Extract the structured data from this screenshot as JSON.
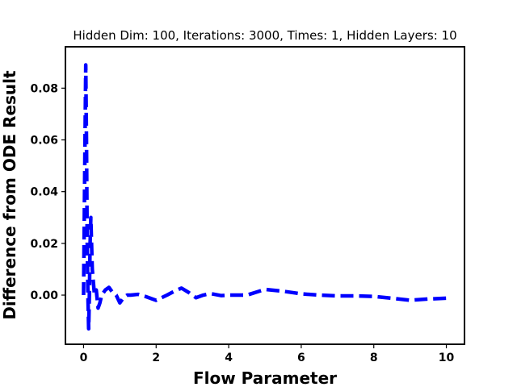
{
  "chart_data": {
    "type": "line",
    "title": "Hidden Dim: 100, Iterations: 3000, Times: 1, Hidden Layers: 10",
    "xlabel": "Flow Parameter",
    "ylabel": "Difference from ODE Result",
    "xlim": [
      -0.5,
      10.5
    ],
    "ylim": [
      -0.019,
      0.096
    ],
    "xticks": [
      0,
      2,
      4,
      6,
      8,
      10
    ],
    "xtick_labels": [
      "0",
      "2",
      "4",
      "6",
      "8",
      "10"
    ],
    "yticks": [
      0.0,
      0.02,
      0.04,
      0.06,
      0.08
    ],
    "ytick_labels": [
      "0.00",
      "0.02",
      "0.04",
      "0.06",
      "0.08"
    ],
    "grid": false,
    "series": [
      {
        "color": "#0000ff",
        "line_style": "dashed",
        "x": [
          0.0,
          0.02,
          0.04,
          0.06,
          0.08,
          0.1,
          0.12,
          0.14,
          0.16,
          0.18,
          0.2,
          0.22,
          0.24,
          0.27,
          0.3,
          0.35,
          0.4,
          0.45,
          0.5,
          0.6,
          0.7,
          0.8,
          0.9,
          1.0,
          1.1,
          1.2,
          1.3,
          1.5,
          1.7,
          2.0,
          2.3,
          2.5,
          2.7,
          2.9,
          3.1,
          3.3,
          3.5,
          3.8,
          4.0,
          4.5,
          5.0,
          5.5,
          6.0,
          6.5,
          7.0,
          7.5,
          8.0,
          8.5,
          9.0,
          9.5,
          10.0
        ],
        "y": [
          0.0,
          0.03,
          0.06,
          0.089,
          0.06,
          0.02,
          0.0,
          -0.013,
          0.0,
          0.02,
          0.03,
          0.02,
          0.01,
          0.005,
          0.0,
          0.002,
          -0.005,
          -0.003,
          0.0,
          0.002,
          0.003,
          0.001,
          0.0,
          -0.003,
          -0.001,
          0.0,
          0.0,
          0.0003,
          -0.0005,
          -0.002,
          0.0,
          0.0015,
          0.0027,
          0.001,
          -0.001,
          0.0,
          0.0006,
          -0.0002,
          0.0,
          0.0,
          0.0022,
          0.0015,
          0.0005,
          0.0,
          -0.0003,
          -0.0003,
          -0.0005,
          -0.0012,
          -0.002,
          -0.0015,
          -0.0012
        ]
      }
    ]
  }
}
